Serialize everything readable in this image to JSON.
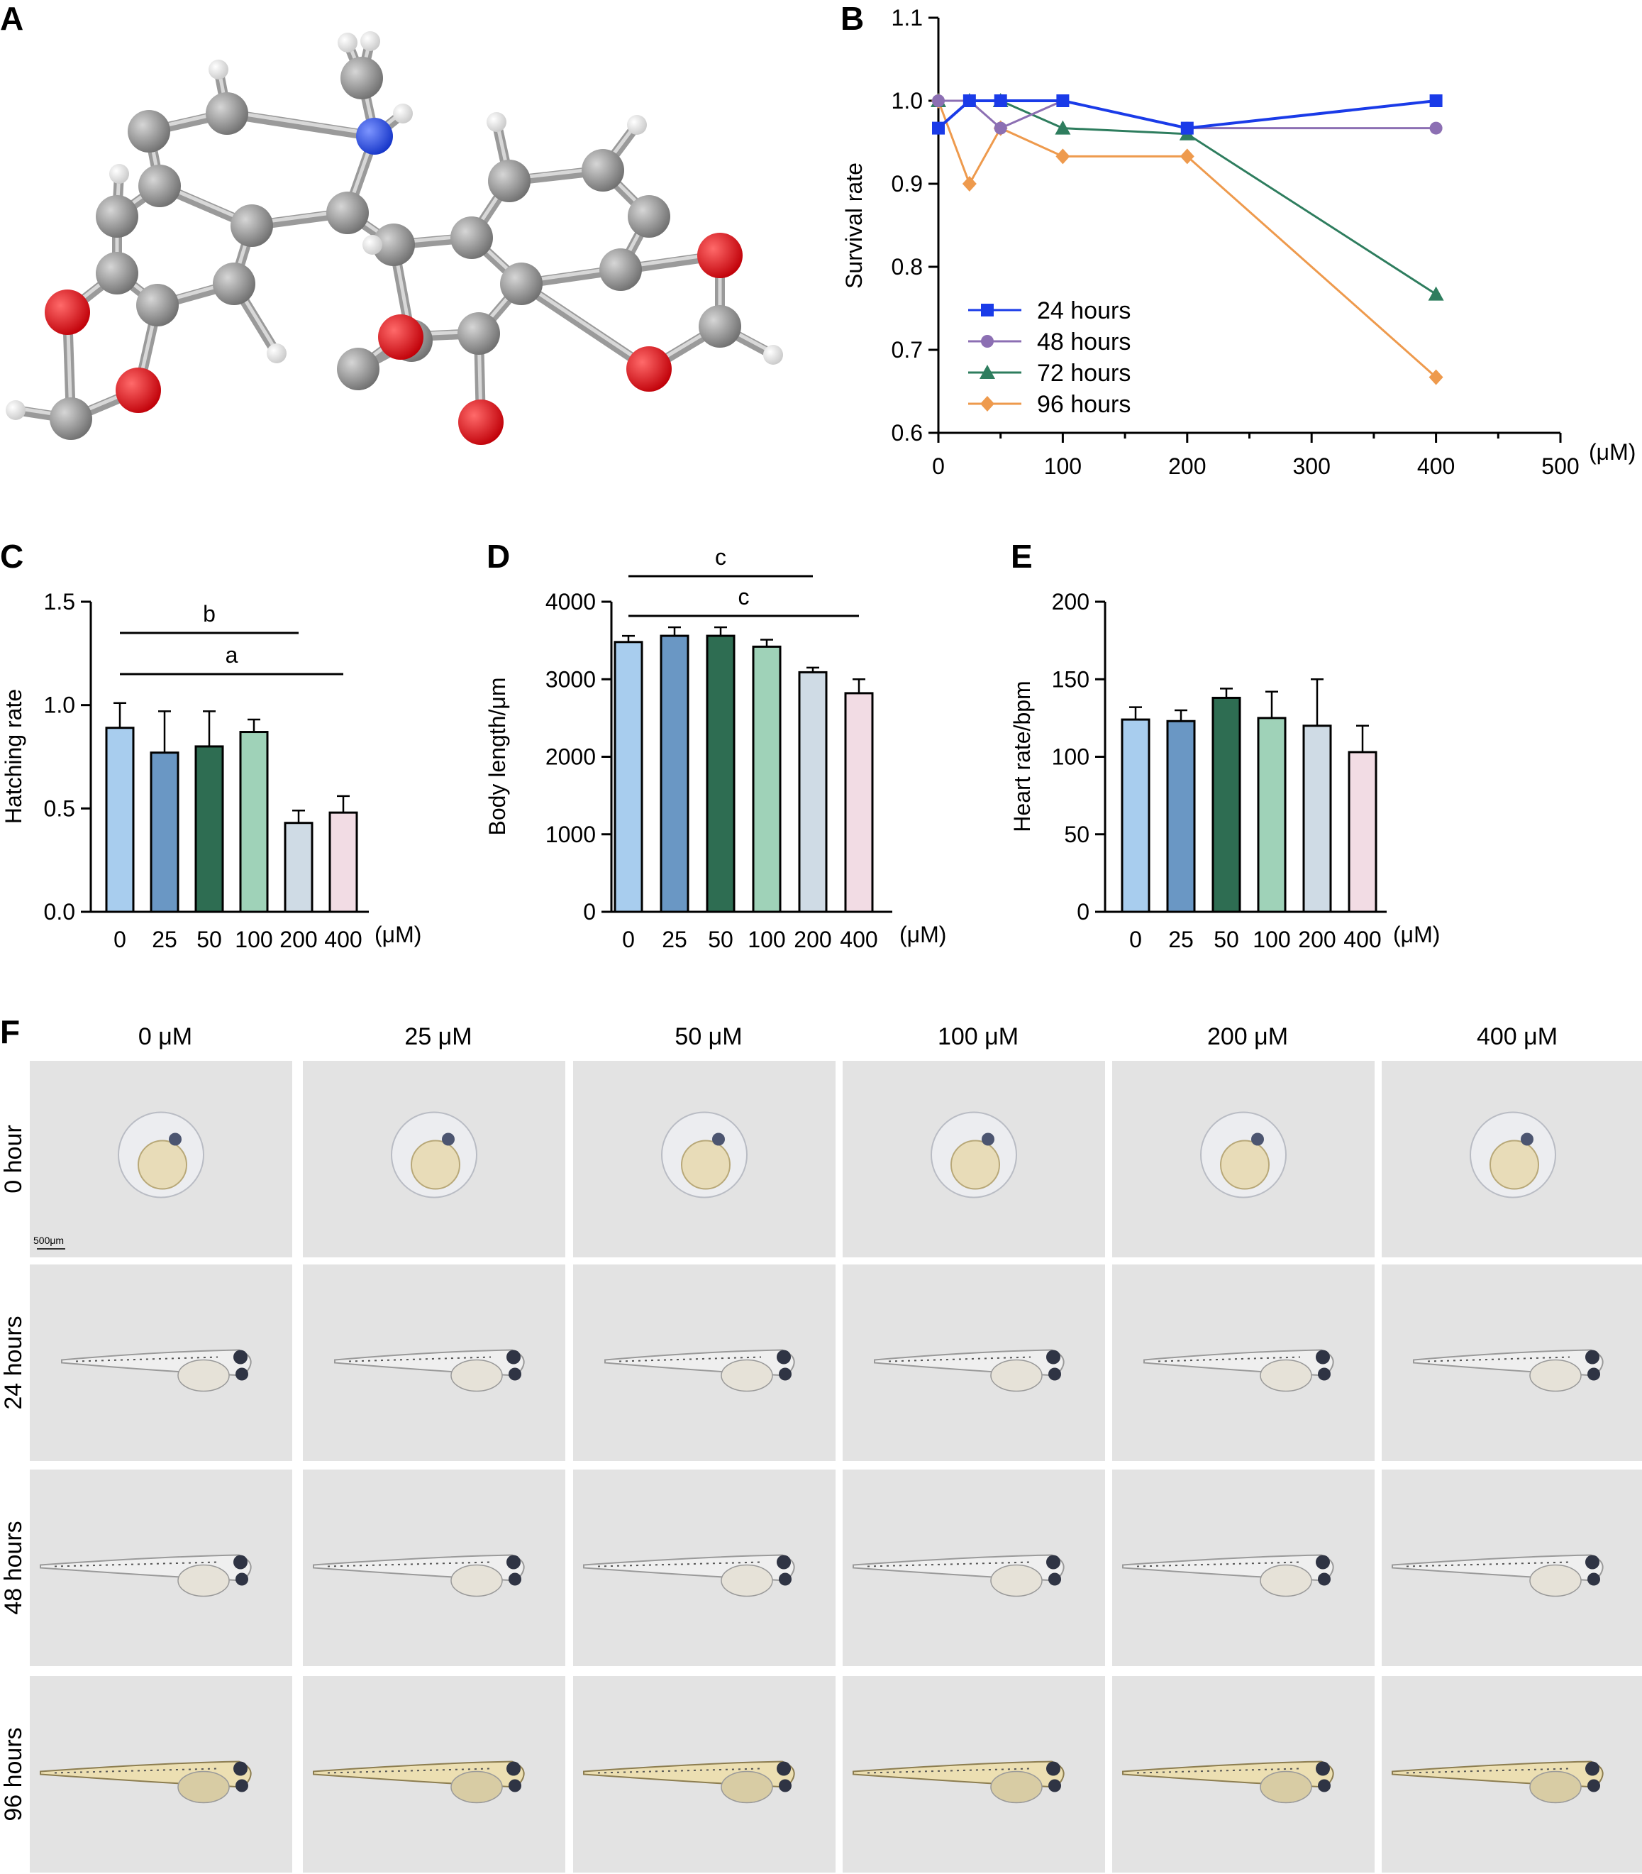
{
  "panels": {
    "A": "A",
    "B": "B",
    "C": "C",
    "D": "D",
    "E": "E",
    "F": "F"
  },
  "colors": {
    "h24": "#1a3be8",
    "h48": "#8c6fb3",
    "h72": "#2e7d5e",
    "h96": "#ee9a4d",
    "bars": [
      "#a8cdee",
      "#6a97c4",
      "#2e6d52",
      "#9fd2b8",
      "#cfdbe5",
      "#f2dce4"
    ],
    "atom_C": "#8f8f8f",
    "atom_O": "#e0101a",
    "atom_N": "#2548e6",
    "atom_H": "#f2f2f2",
    "micro_bg": "#e3e3e3"
  },
  "chart_data": [
    {
      "id": "B",
      "type": "line",
      "x": [
        0,
        25,
        50,
        100,
        200,
        400
      ],
      "series": [
        {
          "name": "24 hours",
          "marker": "square",
          "values": [
            0.967,
            1.0,
            1.0,
            1.0,
            0.967,
            1.0
          ]
        },
        {
          "name": "48 hours",
          "marker": "circle",
          "values": [
            1.0,
            1.0,
            0.967,
            1.0,
            0.967,
            0.967
          ]
        },
        {
          "name": "72 hours",
          "marker": "triangle",
          "values": [
            1.0,
            1.0,
            1.0,
            0.967,
            0.96,
            0.767
          ]
        },
        {
          "name": "96 hours",
          "marker": "diamond",
          "values": [
            1.0,
            0.9,
            0.967,
            0.933,
            0.933,
            0.667
          ]
        }
      ],
      "xlabel": "",
      "ylabel": "Survival rate",
      "unit": "(μM)",
      "xlim": [
        0,
        500
      ],
      "ylim": [
        0.6,
        1.1
      ],
      "xticks": [
        "0",
        "100",
        "200",
        "300",
        "400",
        "500"
      ],
      "yticks": [
        "0.6",
        "0.7",
        "0.8",
        "0.9",
        "1.0",
        "1.1"
      ],
      "legend": "lower-left",
      "grid": false
    },
    {
      "id": "C",
      "type": "bar",
      "categories": [
        "0",
        "25",
        "50",
        "100",
        "200",
        "400"
      ],
      "values": [
        0.89,
        0.77,
        0.8,
        0.87,
        0.43,
        0.48
      ],
      "errors": [
        0.12,
        0.2,
        0.17,
        0.06,
        0.06,
        0.08
      ],
      "ylabel": "Hatching rate",
      "unit": "(μM)",
      "ylim": [
        0,
        1.5
      ],
      "yticks": [
        "0.0",
        "0.5",
        "1.0",
        "1.5"
      ],
      "significance": [
        {
          "from": 0,
          "to": 4,
          "label": "b"
        },
        {
          "from": 0,
          "to": 5,
          "label": "a"
        }
      ]
    },
    {
      "id": "D",
      "type": "bar",
      "categories": [
        "0",
        "25",
        "50",
        "100",
        "200",
        "400"
      ],
      "values": [
        3480,
        3560,
        3560,
        3420,
        3090,
        2820
      ],
      "errors": [
        80,
        110,
        110,
        90,
        60,
        180
      ],
      "ylabel": "Body length/μm",
      "unit": "(μM)",
      "ylim": [
        0,
        4000
      ],
      "yticks": [
        "0",
        "1000",
        "2000",
        "3000",
        "4000"
      ],
      "significance": [
        {
          "from": 0,
          "to": 4,
          "label": "c"
        },
        {
          "from": 0,
          "to": 5,
          "label": "c"
        }
      ]
    },
    {
      "id": "E",
      "type": "bar",
      "categories": [
        "0",
        "25",
        "50",
        "100",
        "200",
        "400"
      ],
      "values": [
        124,
        123,
        138,
        125,
        120,
        103
      ],
      "errors": [
        8,
        7,
        6,
        17,
        30,
        17
      ],
      "ylabel": "Heart rate/bpm",
      "unit": "(μM)",
      "ylim": [
        0,
        200
      ],
      "yticks": [
        "0",
        "50",
        "100",
        "150",
        "200"
      ],
      "significance": []
    }
  ],
  "micrographs": {
    "columns": [
      "0 μM",
      "25 μM",
      "50 μM",
      "100 μM",
      "200 μM",
      "400 μM"
    ],
    "rows": [
      "0 hour",
      "24 hours",
      "48 hours",
      "96 hours"
    ],
    "scale_bar": "500μm"
  }
}
